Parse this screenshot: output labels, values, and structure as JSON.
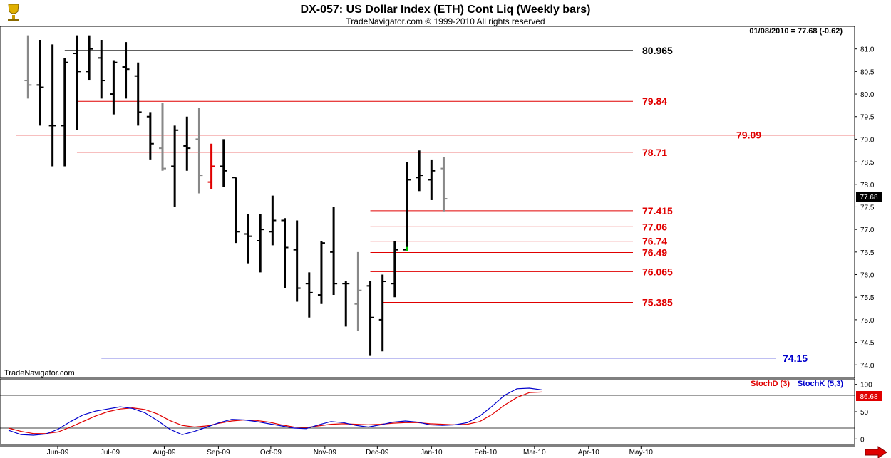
{
  "header": {
    "title": "DX-057:  US Dollar Index (ETH) Cont Liq  (Weekly bars)",
    "subtitle": "TradeNavigator.com © 1999-2010 All rights reserved",
    "last_value": "01/08/2010 = 77.68 (-0.62)",
    "watermark": "TradeNavigator.com",
    "logo_icon": "trophy-icon",
    "nav_icon": "right-arrow-icon"
  },
  "colors": {
    "black_bar": "#000000",
    "gray_bar": "#888888",
    "red": "#e00000",
    "blue": "#0000cc",
    "green": "#00cc00",
    "nav_arrow": "#e00000"
  },
  "chart_data": [
    {
      "type": "ohlc",
      "title": "DX-057:  US Dollar Index (ETH) Cont Liq  (Weekly bars)",
      "ylim": [
        73.72,
        81.5
      ],
      "y_ticks": [
        "74.0",
        "74.5",
        "75.0",
        "75.5",
        "76.0",
        "76.5",
        "77.0",
        "77.5",
        "78.0",
        "78.5",
        "79.0",
        "79.5",
        "80.0",
        "80.5",
        "81.0"
      ],
      "x_ticks": [
        "Jun-09",
        "Jul-09",
        "Aug-09",
        "Sep-09",
        "Oct-09",
        "Nov-09",
        "Dec-09",
        "Jan-10",
        "Feb-10",
        "Mar-10",
        "Apr-10",
        "May-10"
      ],
      "last_price_label": "77.68",
      "bars": [
        {
          "date": "2009-05-15",
          "open": 80.3,
          "high": 81.3,
          "low": 79.9,
          "close": 80.2,
          "color": "gray"
        },
        {
          "date": "2009-05-22",
          "open": 80.2,
          "high": 81.2,
          "low": 79.3,
          "close": 80.15,
          "color": "black"
        },
        {
          "date": "2009-05-29",
          "open": 79.3,
          "high": 81.1,
          "low": 78.4,
          "close": 79.3,
          "color": "black"
        },
        {
          "date": "2009-06-05",
          "open": 79.3,
          "high": 80.8,
          "low": 78.4,
          "close": 80.7,
          "color": "black"
        },
        {
          "date": "2009-06-12",
          "open": 80.9,
          "high": 81.3,
          "low": 79.2,
          "close": 80.5,
          "color": "black"
        },
        {
          "date": "2009-06-19",
          "open": 80.5,
          "high": 81.3,
          "low": 80.3,
          "close": 81.0,
          "color": "black"
        },
        {
          "date": "2009-06-26",
          "open": 80.8,
          "high": 81.2,
          "low": 79.9,
          "close": 80.3,
          "color": "black"
        },
        {
          "date": "2009-07-03",
          "open": 80.0,
          "high": 80.75,
          "low": 79.55,
          "close": 80.7,
          "color": "black"
        },
        {
          "date": "2009-07-10",
          "open": 80.6,
          "high": 81.15,
          "low": 79.9,
          "close": 80.55,
          "color": "black"
        },
        {
          "date": "2009-07-17",
          "open": 80.4,
          "high": 80.7,
          "low": 79.3,
          "close": 79.6,
          "color": "black"
        },
        {
          "date": "2009-07-24",
          "open": 79.5,
          "high": 79.6,
          "low": 78.55,
          "close": 78.9,
          "color": "black"
        },
        {
          "date": "2009-07-31",
          "open": 78.8,
          "high": 79.8,
          "low": 78.3,
          "close": 78.35,
          "color": "gray"
        },
        {
          "date": "2009-08-07",
          "open": 78.4,
          "high": 79.3,
          "low": 77.5,
          "close": 79.2,
          "color": "black"
        },
        {
          "date": "2009-08-14",
          "open": 78.85,
          "high": 79.5,
          "low": 78.3,
          "close": 78.8,
          "color": "black"
        },
        {
          "date": "2009-08-21",
          "open": 79.0,
          "high": 79.7,
          "low": 77.8,
          "close": 78.2,
          "color": "gray"
        },
        {
          "date": "2009-08-28",
          "open": 78.05,
          "high": 78.9,
          "low": 77.9,
          "close": 78.4,
          "color": "red"
        },
        {
          "date": "2009-09-04",
          "open": 78.4,
          "high": 79.0,
          "low": 77.95,
          "close": 78.3,
          "color": "black"
        },
        {
          "date": "2009-09-11",
          "open": 78.15,
          "high": 78.15,
          "low": 76.7,
          "close": 76.95,
          "color": "black"
        },
        {
          "date": "2009-09-18",
          "open": 76.9,
          "high": 77.35,
          "low": 76.25,
          "close": 76.85,
          "color": "black"
        },
        {
          "date": "2009-09-25",
          "open": 76.75,
          "high": 77.35,
          "low": 76.05,
          "close": 77.0,
          "color": "black"
        },
        {
          "date": "2009-10-02",
          "open": 76.95,
          "high": 77.75,
          "low": 76.65,
          "close": 77.2,
          "color": "black"
        },
        {
          "date": "2009-10-09",
          "open": 77.2,
          "high": 77.25,
          "low": 75.7,
          "close": 76.6,
          "color": "black"
        },
        {
          "date": "2009-10-16",
          "open": 76.55,
          "high": 77.2,
          "low": 75.4,
          "close": 75.7,
          "color": "black"
        },
        {
          "date": "2009-10-23",
          "open": 75.8,
          "high": 76.05,
          "low": 75.05,
          "close": 75.6,
          "color": "black"
        },
        {
          "date": "2009-10-30",
          "open": 75.55,
          "high": 76.75,
          "low": 75.35,
          "close": 76.7,
          "color": "black"
        },
        {
          "date": "2009-11-06",
          "open": 76.5,
          "high": 77.5,
          "low": 75.55,
          "close": 75.8,
          "color": "black"
        },
        {
          "date": "2009-11-13",
          "open": 75.8,
          "high": 75.85,
          "low": 74.85,
          "close": 75.8,
          "color": "black"
        },
        {
          "date": "2009-11-20",
          "open": 75.35,
          "high": 76.5,
          "low": 74.75,
          "close": 75.65,
          "color": "gray"
        },
        {
          "date": "2009-11-27",
          "open": 75.75,
          "high": 75.85,
          "low": 74.2,
          "close": 75.05,
          "color": "black"
        },
        {
          "date": "2009-12-04",
          "open": 75.0,
          "high": 76.0,
          "low": 74.3,
          "close": 75.85,
          "color": "black"
        },
        {
          "date": "2009-12-11",
          "open": 75.8,
          "high": 76.75,
          "low": 75.5,
          "close": 76.55,
          "color": "black"
        },
        {
          "date": "2009-12-18",
          "open": 76.55,
          "high": 78.5,
          "low": 76.55,
          "close": 78.1,
          "color": "black"
        },
        {
          "date": "2009-12-25",
          "open": 78.15,
          "high": 78.75,
          "low": 77.85,
          "close": 78.2,
          "color": "black"
        },
        {
          "date": "2010-01-01",
          "open": 78.1,
          "high": 78.55,
          "low": 77.65,
          "close": 78.3,
          "color": "black"
        },
        {
          "date": "2010-01-08",
          "open": 78.35,
          "high": 78.6,
          "low": 77.4,
          "close": 77.68,
          "color": "gray"
        }
      ],
      "levels": [
        {
          "label": "80.965",
          "value": 80.965,
          "color": "black",
          "start": "2009-06-05"
        },
        {
          "label": "79.84",
          "value": 79.84,
          "color": "red",
          "start": "2009-06-12"
        },
        {
          "label": "79.09",
          "value": 79.09,
          "color": "red",
          "start": "2009-05-08"
        },
        {
          "label": "78.71",
          "value": 78.71,
          "color": "red",
          "start": "2009-06-12"
        },
        {
          "label": "77.415",
          "value": 77.415,
          "color": "red",
          "start": "2009-11-27"
        },
        {
          "label": "77.06",
          "value": 77.06,
          "color": "red",
          "start": "2009-11-27"
        },
        {
          "label": "76.74",
          "value": 76.74,
          "color": "red",
          "start": "2009-11-27"
        },
        {
          "label": "76.49",
          "value": 76.49,
          "color": "red",
          "start": "2009-11-27"
        },
        {
          "label": "76.065",
          "value": 76.065,
          "color": "red",
          "start": "2009-11-27"
        },
        {
          "label": "75.385",
          "value": 75.385,
          "color": "red",
          "start": "2009-12-04"
        },
        {
          "label": "74.15",
          "value": 74.15,
          "color": "blue",
          "start": "2009-06-26"
        }
      ]
    },
    {
      "type": "line",
      "legend": [
        "StochD (3)",
        "StochK (5,3)"
      ],
      "legend_placement": "top-right",
      "ylim": [
        -10,
        110
      ],
      "y_ticks": [
        "0",
        "50",
        "100"
      ],
      "reference_lines": [
        80,
        20
      ],
      "last_value_label": "86.68",
      "series": [
        {
          "name": "StochD (3)",
          "color": "red",
          "values": [
            20,
            14,
            10,
            10,
            13,
            22,
            32,
            42,
            50,
            55,
            57,
            54,
            46,
            34,
            25,
            22,
            24,
            29,
            33,
            35,
            34,
            31,
            26,
            22,
            21,
            24,
            27,
            28,
            27,
            26,
            27,
            29,
            30,
            30,
            28,
            27,
            26,
            27,
            32,
            45,
            62,
            76,
            85,
            86
          ]
        },
        {
          "name": "StochK (5,3)",
          "color": "blue",
          "values": [
            16,
            8,
            7,
            9,
            18,
            32,
            44,
            51,
            55,
            59,
            56,
            48,
            34,
            18,
            8,
            14,
            22,
            30,
            36,
            35,
            32,
            28,
            24,
            20,
            19,
            26,
            32,
            30,
            25,
            22,
            26,
            31,
            33,
            31,
            26,
            25,
            26,
            30,
            42,
            60,
            80,
            92,
            93,
            90
          ]
        }
      ]
    }
  ]
}
